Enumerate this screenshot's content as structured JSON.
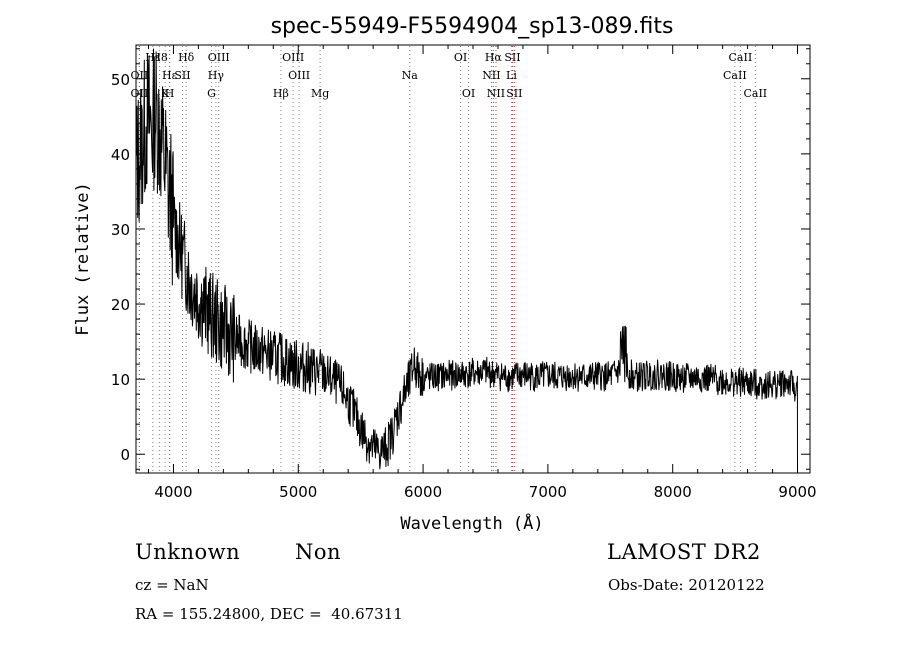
{
  "chart_data": {
    "type": "line",
    "title": "spec-55949-F5594904_sp13-089.fits",
    "xlabel": "Wavelength (Å)",
    "ylabel": "Flux (relative)",
    "xlim": [
      3700,
      9100
    ],
    "ylim": [
      -2.5,
      54.5
    ],
    "xticks": [
      4000,
      5000,
      6000,
      7000,
      8000,
      9000
    ],
    "yticks": [
      0,
      10,
      20,
      30,
      40,
      50
    ],
    "grid": false,
    "legend": "none",
    "line_color": "#000000",
    "marker_color": "#808080",
    "marker_color_red": "#cc3333",
    "spectral_lines": [
      {
        "label": "Hε",
        "wavelength": 3835,
        "row": 0
      },
      {
        "label": "OII",
        "wavelength": 3727,
        "row": 1
      },
      {
        "label": "OII",
        "wavelength": 3727,
        "row": 2
      },
      {
        "label": "H8",
        "wavelength": 3889,
        "row": 0
      },
      {
        "label": "Hε",
        "wavelength": 3970,
        "row": 1
      },
      {
        "label": "SII",
        "wavelength": 4072,
        "row": 1
      },
      {
        "label": "K",
        "wavelength": 3934,
        "row": 2
      },
      {
        "label": "H",
        "wavelength": 3969,
        "row": 2
      },
      {
        "label": "Hδ",
        "wavelength": 4102,
        "row": 0
      },
      {
        "label": "OIII",
        "wavelength": 4363,
        "row": 0
      },
      {
        "label": "Hγ",
        "wavelength": 4340,
        "row": 1
      },
      {
        "label": "G",
        "wavelength": 4305,
        "row": 2
      },
      {
        "label": "OIII",
        "wavelength": 4959,
        "row": 0
      },
      {
        "label": "OIII",
        "wavelength": 5007,
        "row": 1
      },
      {
        "label": "Hβ",
        "wavelength": 4861,
        "row": 2
      },
      {
        "label": "Mg",
        "wavelength": 5175,
        "row": 2
      },
      {
        "label": "Na",
        "wavelength": 5893,
        "row": 1
      },
      {
        "label": "OI",
        "wavelength": 6300,
        "row": 0
      },
      {
        "label": "OI",
        "wavelength": 6364,
        "row": 2
      },
      {
        "label": "Hα",
        "wavelength": 6563,
        "row": 0
      },
      {
        "label": "SII",
        "wavelength": 6716,
        "row": 0
      },
      {
        "label": "NII",
        "wavelength": 6548,
        "row": 1
      },
      {
        "label": "Li",
        "wavelength": 6708,
        "row": 1
      },
      {
        "label": "NII",
        "wavelength": 6584,
        "row": 2
      },
      {
        "label": "SII",
        "wavelength": 6731,
        "row": 2
      },
      {
        "label": "CaII",
        "wavelength": 8542,
        "row": 0
      },
      {
        "label": "CaII",
        "wavelength": 8498,
        "row": 1
      },
      {
        "label": "CaII",
        "wavelength": 8662,
        "row": 2
      }
    ],
    "series": [
      {
        "x": [
          3700,
          3750,
          3800,
          3830,
          3850,
          3880,
          3900,
          3920,
          3940,
          3960,
          3980,
          4000,
          4030,
          4060,
          4080,
          4100,
          4130,
          4160,
          4200,
          4250,
          4300,
          4350,
          4400,
          4450,
          4500,
          4550,
          4600,
          4650,
          4700,
          4750,
          4800,
          4850,
          4900,
          4950,
          5000,
          5050,
          5100,
          5150,
          5200,
          5250,
          5300,
          5350,
          5400,
          5450,
          5500,
          5550,
          5600,
          5650,
          5700,
          5750,
          5800,
          5850,
          5900,
          5930,
          5950,
          6000,
          6100,
          6200,
          6300,
          6400,
          6500,
          6600,
          6700,
          6800,
          6900,
          7000,
          7100,
          7200,
          7300,
          7400,
          7500,
          7600,
          7650,
          7700,
          7800,
          7900,
          8000,
          8100,
          8200,
          8300,
          8400,
          8500,
          8600,
          8700,
          8800,
          8900,
          8950,
          9000
        ],
        "y": [
          38,
          42,
          45,
          43,
          46,
          44,
          42,
          40,
          38,
          35,
          34,
          31,
          29,
          27,
          26,
          25,
          23,
          22,
          21,
          19.5,
          18.5,
          17.5,
          16.8,
          16,
          15.3,
          15,
          14.5,
          14,
          13.8,
          13.4,
          13,
          12.8,
          12.5,
          12,
          11.8,
          11.6,
          11.3,
          11,
          10.7,
          10.2,
          9.6,
          8.7,
          7.2,
          5.5,
          3.5,
          2,
          0.8,
          0.3,
          0.8,
          2.5,
          5.5,
          8,
          10,
          12.5,
          11,
          10.2,
          10.3,
          10.5,
          10.6,
          10.8,
          11,
          10.5,
          10.2,
          10.6,
          10.3,
          10.4,
          10.3,
          10.5,
          10.2,
          10.4,
          10.3,
          11.5,
          10.8,
          10.2,
          10.5,
          10.6,
          10.3,
          10.1,
          10.2,
          10,
          9.8,
          9.6,
          9.4,
          9.3,
          9.2,
          9.6,
          9.2,
          8.5
        ]
      }
    ]
  },
  "info": {
    "class_text": "Unknown",
    "subclass_text": "Non",
    "cz_text": "cz = NaN",
    "radec_text": "RA = 155.24800, DEC =  40.67311",
    "survey_text": "LAMOST DR2",
    "obsdate_text": "Obs-Date: 20120122"
  }
}
